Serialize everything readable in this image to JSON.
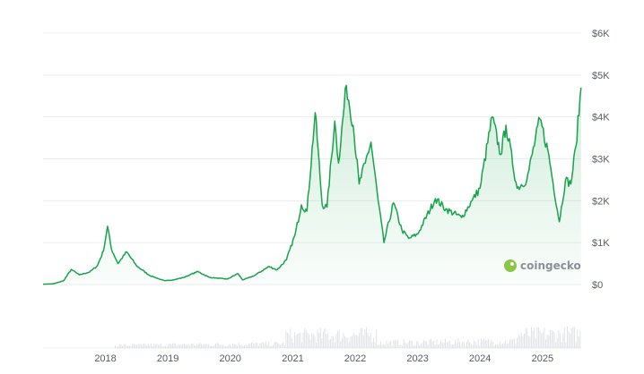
{
  "brand": {
    "name": "coingecko",
    "logo_color": "#8dc647"
  },
  "colors": {
    "line": "#16a34a",
    "fill_top": "#16a34a",
    "grid": "#ebedf0",
    "volume": "#c9ccd1"
  },
  "chart_data": {
    "type": "area",
    "title": "",
    "xlabel": "",
    "ylabel": "",
    "xlim": [
      "2017-01-01",
      "2025-08-15"
    ],
    "ylim": [
      0,
      6000
    ],
    "y_ticks": [
      0,
      1000,
      2000,
      3000,
      4000,
      5000,
      6000
    ],
    "y_tick_labels": [
      "$0",
      "$1K",
      "$2K",
      "$3K",
      "$4K",
      "$5K",
      "$6K"
    ],
    "x_tick_labels": [
      "2018",
      "2019",
      "2020",
      "2021",
      "2022",
      "2023",
      "2024",
      "2025"
    ],
    "grid": true,
    "series": [
      {
        "x": [
          "2017-01-01",
          "2017-03-01",
          "2017-05-01",
          "2017-06-15",
          "2017-08-01",
          "2017-10-01",
          "2017-11-15",
          "2017-12-20",
          "2018-01-13",
          "2018-02-05",
          "2018-03-15",
          "2018-05-05",
          "2018-07-01",
          "2018-09-15",
          "2018-11-20",
          "2018-12-15",
          "2019-02-01",
          "2019-04-01",
          "2019-06-25",
          "2019-09-01",
          "2019-12-15",
          "2020-02-15",
          "2020-03-13",
          "2020-05-15",
          "2020-08-15",
          "2020-10-01",
          "2020-11-25",
          "2021-01-15",
          "2021-02-20",
          "2021-03-25",
          "2021-05-12",
          "2021-06-22",
          "2021-07-20",
          "2021-09-03",
          "2021-09-25",
          "2021-11-10",
          "2021-12-20",
          "2022-01-24",
          "2022-03-01",
          "2022-04-03",
          "2022-05-15",
          "2022-06-18",
          "2022-08-13",
          "2022-10-01",
          "2022-11-10",
          "2023-01-01",
          "2023-04-15",
          "2023-06-15",
          "2023-09-15",
          "2023-11-15",
          "2024-01-01",
          "2024-03-12",
          "2024-05-01",
          "2024-06-01",
          "2024-08-05",
          "2024-10-01",
          "2024-12-16",
          "2025-02-01",
          "2025-04-09",
          "2025-05-15",
          "2025-06-15",
          "2025-07-15",
          "2025-08-14"
        ],
        "y": [
          8,
          15,
          90,
          360,
          230,
          300,
          450,
          800,
          1390,
          850,
          500,
          780,
          450,
          220,
          120,
          90,
          110,
          165,
          310,
          170,
          130,
          260,
          110,
          200,
          430,
          350,
          590,
          1200,
          1900,
          1750,
          4100,
          1900,
          1850,
          3900,
          2900,
          4750,
          3800,
          2400,
          2900,
          3400,
          2000,
          1000,
          1950,
          1300,
          1100,
          1200,
          2050,
          1800,
          1600,
          2000,
          2300,
          4000,
          3100,
          3800,
          2300,
          2500,
          3950,
          3200,
          1500,
          2500,
          2400,
          3300,
          4700
        ]
      }
    ]
  }
}
